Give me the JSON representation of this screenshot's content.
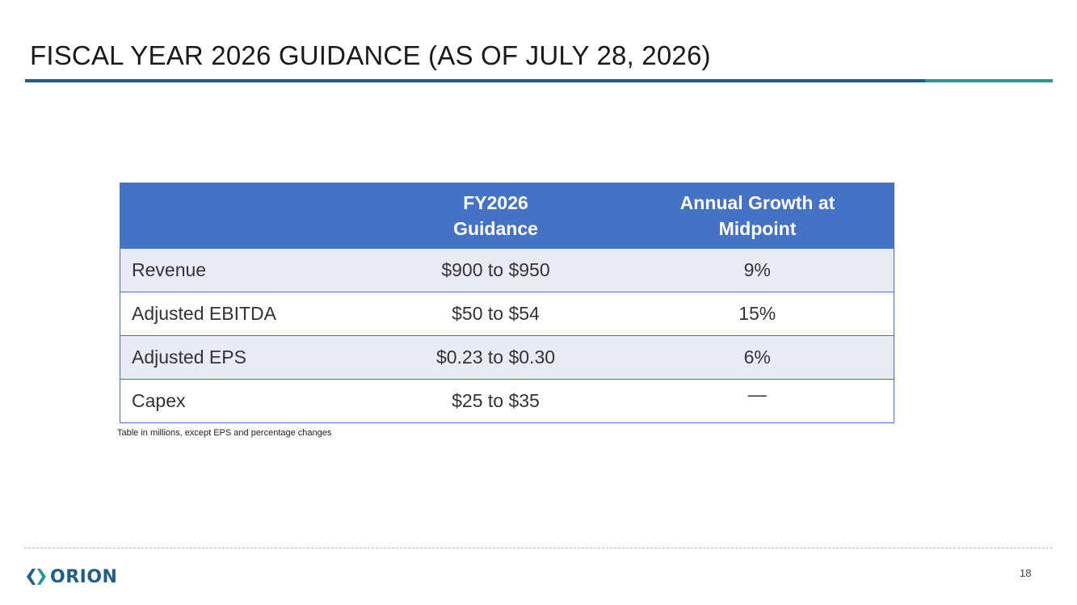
{
  "slide": {
    "title": "FISCAL YEAR 2026 GUIDANCE (AS OF JULY 28, 2026)",
    "page_number": "18"
  },
  "table": {
    "headers": {
      "metric": "",
      "guidance_line1": "FY2026",
      "guidance_line2": "Guidance",
      "growth_line1": "Annual Growth at",
      "growth_line2": "Midpoint"
    },
    "rows": [
      {
        "metric": "Revenue",
        "guidance": "$900 to $950",
        "growth": "9%"
      },
      {
        "metric": "Adjusted EBITDA",
        "guidance": "$50 to $54",
        "growth": "15%"
      },
      {
        "metric": "Adjusted EPS",
        "guidance": "$0.23 to $0.30",
        "growth": "6%"
      },
      {
        "metric": "Capex",
        "guidance": "$25 to $35",
        "growth": "—"
      }
    ]
  },
  "footnote": "Table in millions, except EPS and percentage changes",
  "logo": {
    "text": "ORION",
    "icon": "orion-logo-icon"
  },
  "colors": {
    "header_fill": "#4472c4",
    "row_shade": "#e8ebf5",
    "title_rule": "#1d5f86",
    "title_rule_accent": "#1f9a95",
    "brand": "#1d5f86"
  }
}
